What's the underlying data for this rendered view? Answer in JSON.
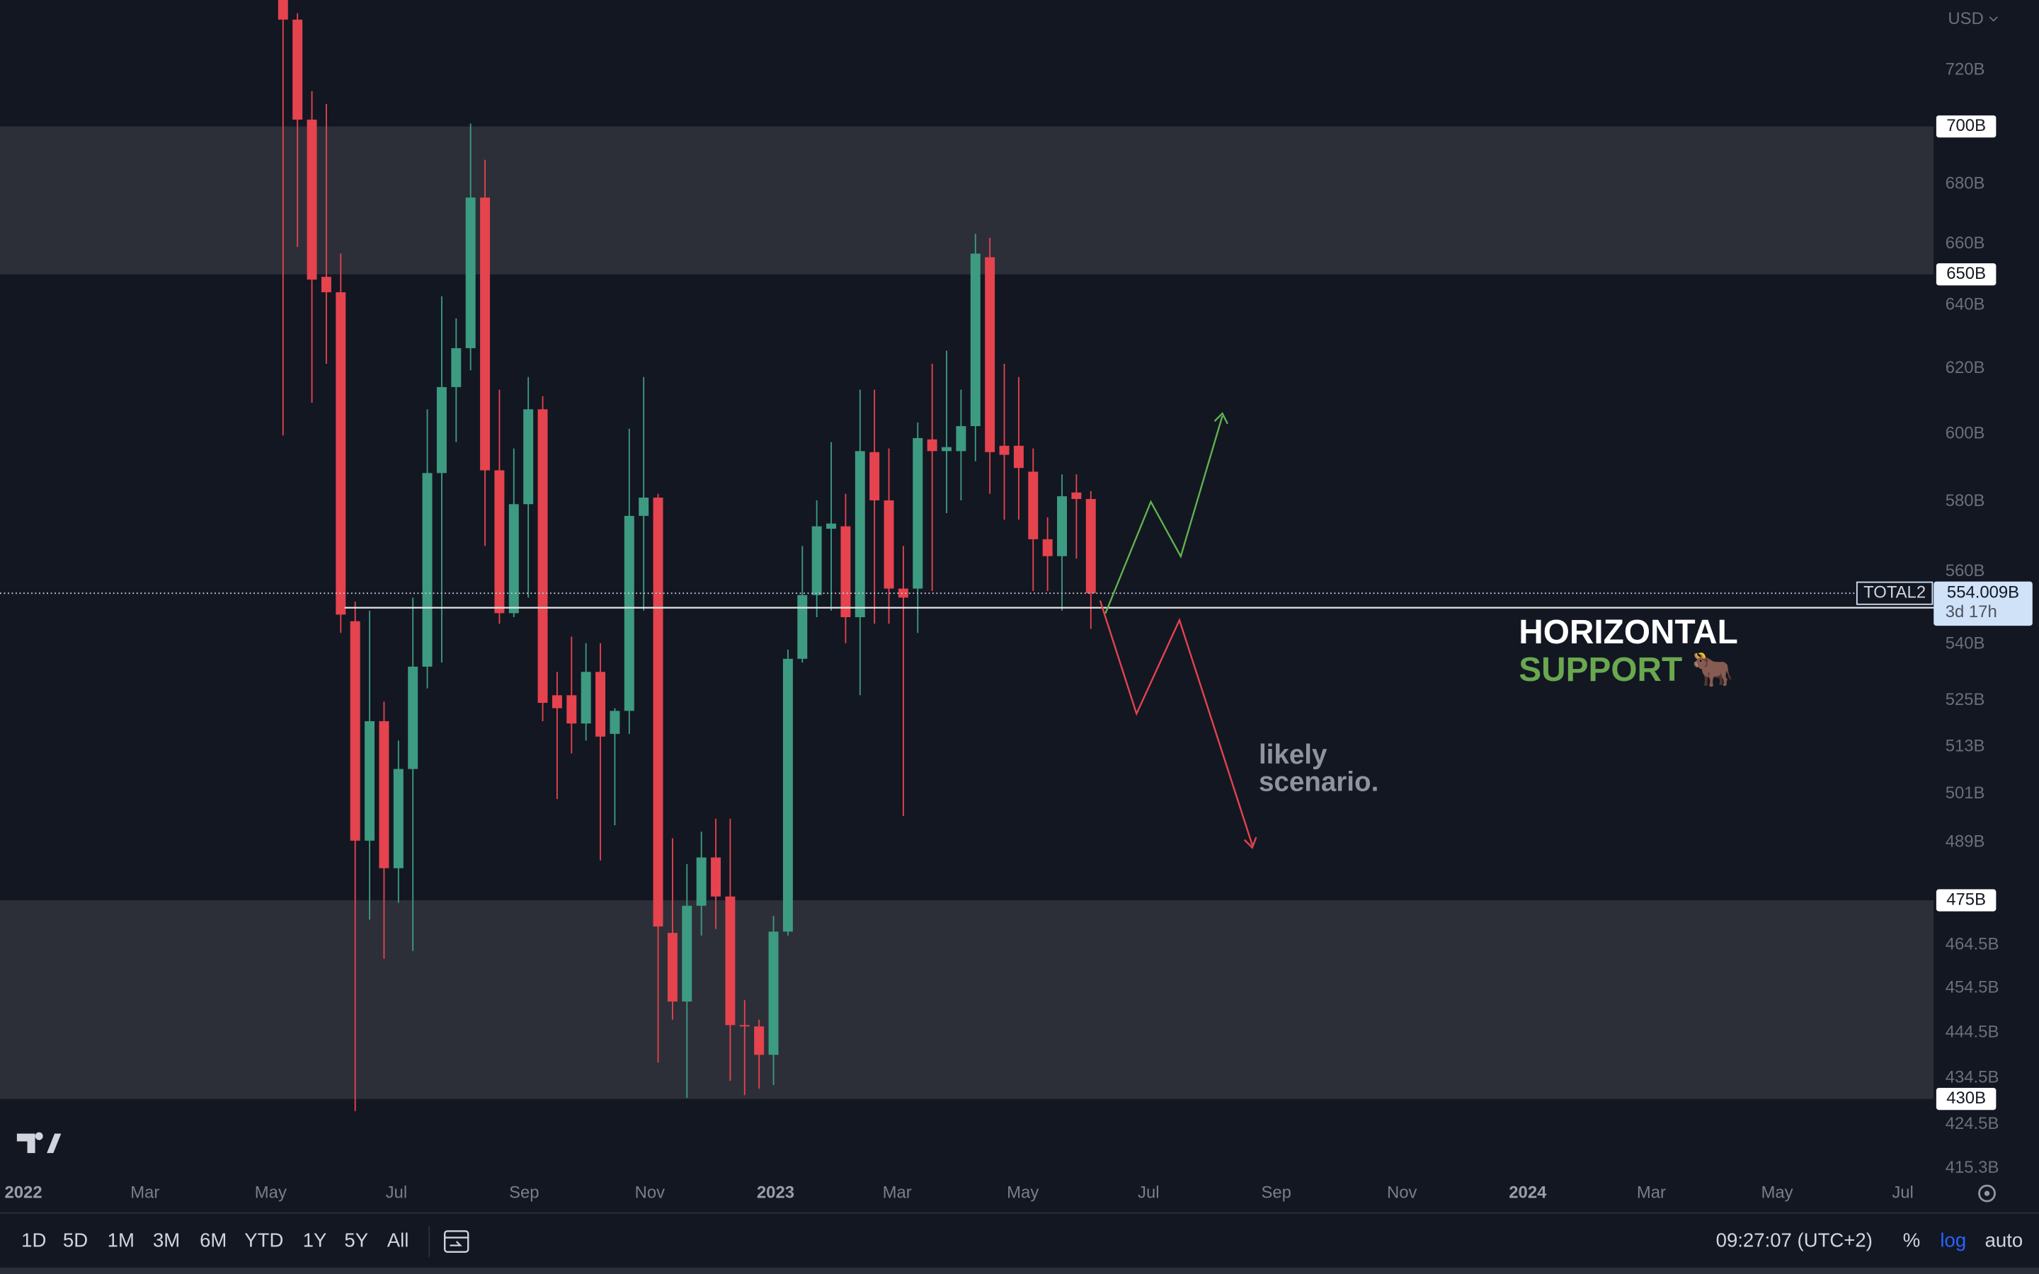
{
  "chart_data": {
    "type": "candlestick",
    "symbol": "TOTAL2",
    "currency": "USD",
    "log": true,
    "up_color": "#3d9b82",
    "down_color": "#e5434e",
    "xlim": [
      -11.36,
      927
    ],
    "xticks": [
      {
        "value": 0,
        "label": "2022"
      },
      {
        "value": 59,
        "label": "Mar"
      },
      {
        "value": 120,
        "label": "May"
      },
      {
        "value": 181,
        "label": "Jul"
      },
      {
        "value": 243,
        "label": "Sep"
      },
      {
        "value": 304,
        "label": "Nov"
      },
      {
        "value": 365,
        "label": "2023"
      },
      {
        "value": 424,
        "label": "Mar"
      },
      {
        "value": 485,
        "label": "May"
      },
      {
        "value": 546,
        "label": "Jul"
      },
      {
        "value": 608,
        "label": "Sep"
      },
      {
        "value": 669,
        "label": "Nov"
      },
      {
        "value": 730,
        "label": "2024"
      },
      {
        "value": 790,
        "label": "Mar"
      },
      {
        "value": 851,
        "label": "May"
      },
      {
        "value": 912,
        "label": "Jul"
      }
    ],
    "ylim": [
      413.6,
      745.8
    ],
    "yticks": [
      {
        "value": 720,
        "label": "720B"
      },
      {
        "value": 680,
        "label": "680B"
      },
      {
        "value": 660,
        "label": "660B"
      },
      {
        "value": 640,
        "label": "640B"
      },
      {
        "value": 620,
        "label": "620B"
      },
      {
        "value": 600,
        "label": "600B"
      },
      {
        "value": 580,
        "label": "580B"
      },
      {
        "value": 560,
        "label": "560B"
      },
      {
        "value": 540,
        "label": "540B"
      },
      {
        "value": 525,
        "label": "525B"
      },
      {
        "value": 513,
        "label": "513B"
      },
      {
        "value": 501,
        "label": "501B"
      },
      {
        "value": 489,
        "label": "489B"
      },
      {
        "value": 464.5,
        "label": "464.5B"
      },
      {
        "value": 454.5,
        "label": "454.5B"
      },
      {
        "value": 444.5,
        "label": "444.5B"
      },
      {
        "value": 434.5,
        "label": "434.5B"
      },
      {
        "value": 424.5,
        "label": "424.5B"
      },
      {
        "value": 415.3,
        "label": "415.3B"
      }
    ],
    "x": [
      126,
      133,
      140,
      147,
      154,
      161,
      168,
      175,
      182,
      189,
      196,
      203,
      210,
      217,
      224,
      231,
      238,
      245,
      252,
      259,
      266,
      273,
      280,
      287,
      294,
      301,
      308,
      315,
      322,
      329,
      336,
      343,
      350,
      357,
      364,
      371,
      378,
      385,
      392,
      399,
      406,
      413,
      420,
      427,
      434,
      441,
      448,
      455,
      462,
      469,
      476,
      483,
      490,
      497,
      504,
      511,
      518
    ],
    "open": [
      745.8,
      738.5,
      702.4,
      649.2,
      644.2,
      546.3,
      489.4,
      519.6,
      482.7,
      507.3,
      534.0,
      588.4,
      614.3,
      626.4,
      675.5,
      589.2,
      548.5,
      579.3,
      607.5,
      526.4,
      526.4,
      519.0,
      532.6,
      516.3,
      522.3,
      575.9,
      581.2,
      467.3,
      451.5,
      473.7,
      485.3,
      475.9,
      446.2,
      445.9,
      439.6,
      467.6,
      536.1,
      553.5,
      572.2,
      572.9,
      547.4,
      594.6,
      580.4,
      555.3,
      555.3,
      598.4,
      594.9,
      594.9,
      602.4,
      655.6,
      596.5,
      596.5,
      588.8,
      569.2,
      564.4,
      582.7,
      580.8
    ],
    "high": [
      745.8,
      740.9,
      712.5,
      707.9,
      656.8,
      551.7,
      549.2,
      524.7,
      514.6,
      552.8,
      607.5,
      642.9,
      635.8,
      701.0,
      688.4,
      613.5,
      595.7,
      617.4,
      611.5,
      532.6,
      542.1,
      540.3,
      540.3,
      523.0,
      601.6,
      617.4,
      582.3,
      490.0,
      483.7,
      491.6,
      494.8,
      494.8,
      451.8,
      447.4,
      471.3,
      538.6,
      567.3,
      580.4,
      597.6,
      582.3,
      613.5,
      613.5,
      595.7,
      567.3,
      603.5,
      621.5,
      625.6,
      613.5,
      663.3,
      662.0,
      621.5,
      617.4,
      595.7,
      575.5,
      588.0,
      588.0,
      583.1
    ],
    "low": [
      599.6,
      659.0,
      609.5,
      621.5,
      543.1,
      427.4,
      470.4,
      461.3,
      474.4,
      463.1,
      528.2,
      535.1,
      597.6,
      619.5,
      567.3,
      545.6,
      547.4,
      552.8,
      519.6,
      499.7,
      511.3,
      514.6,
      484.6,
      493.2,
      516.3,
      549.2,
      437.9,
      447.4,
      430.2,
      466.7,
      468.2,
      433.9,
      430.8,
      432.2,
      433.0,
      466.7,
      535.1,
      547.4,
      549.2,
      540.3,
      526.4,
      545.6,
      545.6,
      495.5,
      543.1,
      554.6,
      576.7,
      580.4,
      591.9,
      582.3,
      574.8,
      574.8,
      554.6,
      554.6,
      549.2,
      563.7,
      544.2
    ],
    "close": [
      738.5,
      702.4,
      648.3,
      644.2,
      548.1,
      489.4,
      519.6,
      482.7,
      507.3,
      534.0,
      588.4,
      614.3,
      626.4,
      675.5,
      589.2,
      548.5,
      579.3,
      607.5,
      524.4,
      523.0,
      519.0,
      532.6,
      515.6,
      522.3,
      575.9,
      581.2,
      468.8,
      451.5,
      473.7,
      485.3,
      475.9,
      446.2,
      445.9,
      439.6,
      467.6,
      536.1,
      553.5,
      572.9,
      573.7,
      547.4,
      594.9,
      580.4,
      555.3,
      552.8,
      598.8,
      594.9,
      596.1,
      602.4,
      656.8,
      594.6,
      593.8,
      589.9,
      569.2,
      564.4,
      581.6,
      580.8,
      554.009
    ],
    "zones": [
      {
        "low": {
          "value": 650,
          "label": "650B"
        },
        "high": {
          "value": 700,
          "label": "700B"
        }
      },
      {
        "low": {
          "value": 430,
          "label": "430B"
        },
        "high": {
          "value": 475,
          "label": "475B"
        }
      }
    ],
    "support_line": 550,
    "last_price": {
      "value": 554.009,
      "label": "554.009B"
    },
    "countdown": "3d 17h",
    "annotations": {
      "support_1": "HORIZONTAL",
      "support_2": "SUPPORT 🐂",
      "scenario_1": "likely",
      "scenario_2": "scenario."
    }
  },
  "toolbar": {
    "ranges": [
      "1D",
      "5D",
      "1M",
      "3M",
      "6M",
      "YTD",
      "1Y",
      "5Y",
      "All"
    ],
    "clock": "09:27:07 (UTC+2)",
    "percent": "%",
    "log": "log",
    "auto": "auto"
  }
}
